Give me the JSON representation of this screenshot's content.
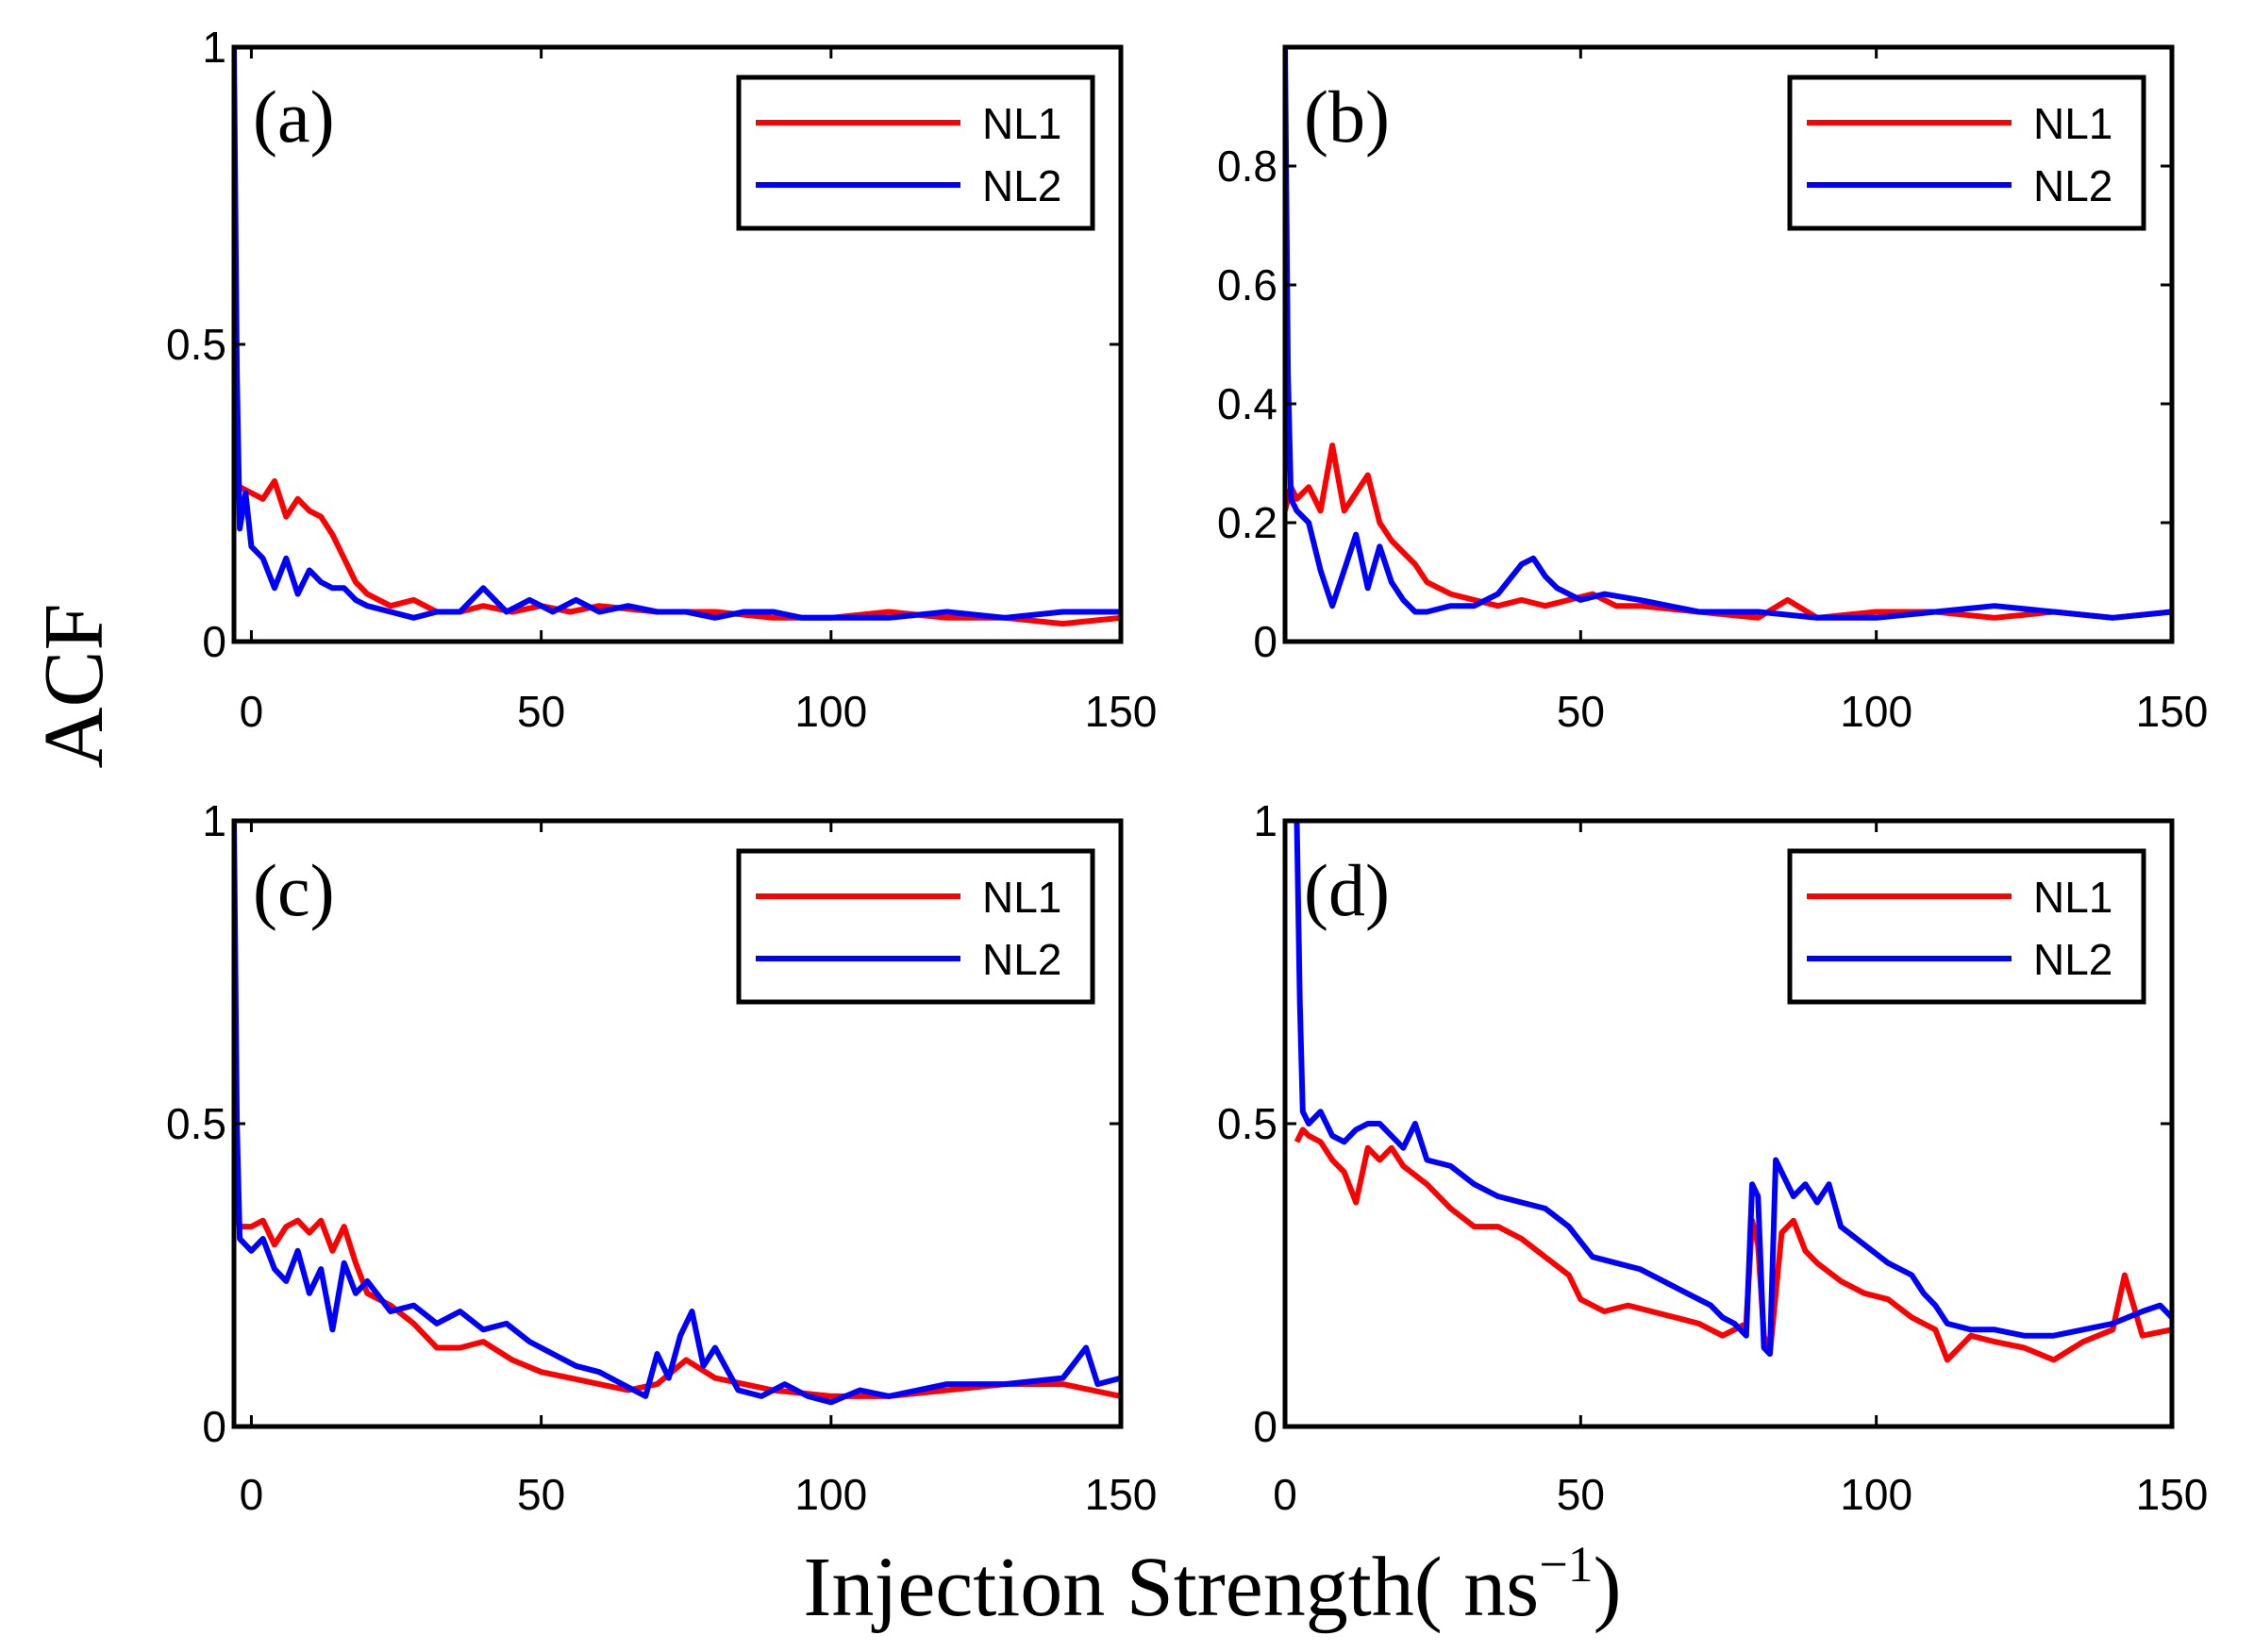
{
  "figure": {
    "ylabel": "ACF",
    "xlabel": "Injection Strength( ns",
    "xlabel_sup": "−1",
    "xlabel_close": ")"
  },
  "colors": {
    "NL1": "#ff0000",
    "NL2": "#0000ff",
    "axis": "#000000"
  },
  "chart_data": [
    {
      "type": "line",
      "panel": "(a)",
      "xlim": [
        -3,
        150
      ],
      "ylim": [
        0,
        1
      ],
      "xticks": [
        0,
        50,
        100,
        150
      ],
      "xtick_labels": [
        "0",
        "50",
        "100",
        "150"
      ],
      "yticks": [
        0,
        0.5,
        1
      ],
      "ytick_labels": [
        "0",
        "0.5",
        "1"
      ],
      "legend": "top-right",
      "series": [
        {
          "name": "NL1",
          "x": [
            -3,
            -2,
            0,
            2,
            4,
            6,
            8,
            10,
            12,
            14,
            16,
            18,
            20,
            24,
            28,
            32,
            36,
            40,
            45,
            50,
            55,
            60,
            70,
            80,
            90,
            100,
            110,
            120,
            130,
            140,
            150
          ],
          "y": [
            0.29,
            0.26,
            0.25,
            0.24,
            0.27,
            0.21,
            0.24,
            0.22,
            0.21,
            0.18,
            0.14,
            0.1,
            0.08,
            0.06,
            0.07,
            0.05,
            0.05,
            0.06,
            0.05,
            0.06,
            0.05,
            0.06,
            0.05,
            0.05,
            0.04,
            0.04,
            0.05,
            0.04,
            0.04,
            0.03,
            0.04
          ]
        },
        {
          "name": "NL2",
          "x": [
            -3,
            -2.5,
            -2,
            -1,
            0,
            2,
            4,
            6,
            8,
            10,
            12,
            14,
            16,
            18,
            20,
            24,
            28,
            32,
            36,
            40,
            44,
            48,
            52,
            56,
            60,
            65,
            70,
            75,
            80,
            85,
            90,
            95,
            100,
            110,
            120,
            130,
            140,
            150
          ],
          "y": [
            1.0,
            0.45,
            0.19,
            0.25,
            0.16,
            0.14,
            0.09,
            0.14,
            0.08,
            0.12,
            0.1,
            0.09,
            0.09,
            0.07,
            0.06,
            0.05,
            0.04,
            0.05,
            0.05,
            0.09,
            0.05,
            0.07,
            0.05,
            0.07,
            0.05,
            0.06,
            0.05,
            0.05,
            0.04,
            0.05,
            0.05,
            0.04,
            0.04,
            0.04,
            0.05,
            0.04,
            0.05,
            0.05
          ]
        }
      ]
    },
    {
      "type": "line",
      "panel": "(b)",
      "xlim": [
        0,
        150
      ],
      "ylim": [
        0,
        1
      ],
      "xticks": [
        50,
        100,
        150
      ],
      "xtick_labels": [
        "50",
        "100",
        "150"
      ],
      "yticks": [
        0,
        0.2,
        0.4,
        0.6,
        0.8
      ],
      "ytick_labels": [
        "0",
        "0.2",
        "0.4",
        "0.6",
        "0.8"
      ],
      "legend": "top-right",
      "series": [
        {
          "name": "NL1",
          "x": [
            0,
            1,
            2,
            4,
            6,
            8,
            10,
            12,
            14,
            16,
            18,
            20,
            22,
            24,
            28,
            32,
            36,
            40,
            44,
            48,
            52,
            56,
            60,
            70,
            80,
            85,
            90,
            100,
            110,
            120,
            130,
            140,
            150
          ],
          "y": [
            0.22,
            0.26,
            0.24,
            0.26,
            0.22,
            0.33,
            0.22,
            0.25,
            0.28,
            0.2,
            0.17,
            0.15,
            0.13,
            0.1,
            0.08,
            0.07,
            0.06,
            0.07,
            0.06,
            0.07,
            0.08,
            0.06,
            0.06,
            0.05,
            0.04,
            0.07,
            0.04,
            0.05,
            0.05,
            0.04,
            0.05,
            0.04,
            0.05
          ]
        },
        {
          "name": "NL2",
          "x": [
            0,
            0.5,
            1,
            2,
            4,
            6,
            8,
            10,
            12,
            14,
            16,
            18,
            20,
            22,
            24,
            28,
            32,
            36,
            40,
            42,
            44,
            46,
            50,
            54,
            60,
            70,
            80,
            90,
            100,
            110,
            120,
            130,
            140,
            150
          ],
          "y": [
            1.0,
            0.45,
            0.24,
            0.22,
            0.2,
            0.12,
            0.06,
            0.12,
            0.18,
            0.09,
            0.16,
            0.1,
            0.07,
            0.05,
            0.05,
            0.06,
            0.06,
            0.08,
            0.13,
            0.14,
            0.11,
            0.09,
            0.07,
            0.08,
            0.07,
            0.05,
            0.05,
            0.04,
            0.04,
            0.05,
            0.06,
            0.05,
            0.04,
            0.05
          ]
        }
      ]
    },
    {
      "type": "line",
      "panel": "(c)",
      "xlim": [
        -3,
        150
      ],
      "ylim": [
        0,
        1
      ],
      "xticks": [
        0,
        50,
        100,
        150
      ],
      "xtick_labels": [
        "0",
        "50",
        "100",
        "150"
      ],
      "yticks": [
        0,
        0.5,
        1
      ],
      "ytick_labels": [
        "0",
        "0.5",
        "1"
      ],
      "legend": "top-right",
      "series": [
        {
          "name": "NL1",
          "x": [
            -3,
            -2,
            0,
            2,
            4,
            6,
            8,
            10,
            12,
            14,
            16,
            18,
            20,
            24,
            28,
            32,
            36,
            40,
            45,
            50,
            55,
            60,
            65,
            70,
            75,
            80,
            85,
            90,
            100,
            110,
            120,
            130,
            140,
            145,
            150
          ],
          "y": [
            0.37,
            0.33,
            0.33,
            0.34,
            0.3,
            0.33,
            0.34,
            0.32,
            0.34,
            0.29,
            0.33,
            0.27,
            0.22,
            0.2,
            0.17,
            0.13,
            0.13,
            0.14,
            0.11,
            0.09,
            0.08,
            0.07,
            0.06,
            0.07,
            0.11,
            0.08,
            0.07,
            0.06,
            0.05,
            0.05,
            0.06,
            0.07,
            0.07,
            0.06,
            0.05
          ]
        },
        {
          "name": "NL2",
          "x": [
            -3,
            -2.5,
            -2,
            -1,
            0,
            2,
            4,
            6,
            8,
            10,
            12,
            14,
            16,
            18,
            20,
            24,
            28,
            32,
            36,
            40,
            44,
            48,
            52,
            56,
            60,
            64,
            68,
            70,
            72,
            74,
            76,
            78,
            80,
            84,
            88,
            92,
            96,
            100,
            105,
            110,
            120,
            130,
            140,
            144,
            146,
            150
          ],
          "y": [
            1.0,
            0.5,
            0.31,
            0.3,
            0.29,
            0.31,
            0.26,
            0.24,
            0.29,
            0.22,
            0.26,
            0.16,
            0.27,
            0.22,
            0.24,
            0.19,
            0.2,
            0.17,
            0.19,
            0.16,
            0.17,
            0.14,
            0.12,
            0.1,
            0.09,
            0.07,
            0.05,
            0.12,
            0.08,
            0.15,
            0.19,
            0.1,
            0.13,
            0.06,
            0.05,
            0.07,
            0.05,
            0.04,
            0.06,
            0.05,
            0.07,
            0.07,
            0.08,
            0.13,
            0.07,
            0.08
          ]
        }
      ]
    },
    {
      "type": "line",
      "panel": "(d)",
      "xlim": [
        0,
        150
      ],
      "ylim": [
        0,
        1
      ],
      "xticks": [
        0,
        50,
        100,
        150
      ],
      "xtick_labels": [
        "0",
        "50",
        "100",
        "150"
      ],
      "yticks": [
        0,
        0.5,
        1
      ],
      "ytick_labels": [
        "0",
        "0.5",
        "1"
      ],
      "legend": "top-right",
      "series": [
        {
          "name": "NL1",
          "x": [
            2,
            3,
            4,
            6,
            8,
            10,
            12,
            14,
            16,
            18,
            20,
            24,
            28,
            32,
            36,
            40,
            44,
            48,
            50,
            54,
            58,
            62,
            66,
            70,
            74,
            76,
            78,
            79,
            80,
            81,
            82,
            84,
            86,
            88,
            90,
            94,
            98,
            102,
            106,
            108,
            110,
            112,
            116,
            120,
            125,
            130,
            135,
            140,
            142,
            145,
            150
          ],
          "y": [
            0.47,
            0.49,
            0.48,
            0.47,
            0.44,
            0.42,
            0.37,
            0.46,
            0.44,
            0.46,
            0.43,
            0.4,
            0.36,
            0.33,
            0.33,
            0.31,
            0.28,
            0.25,
            0.21,
            0.19,
            0.2,
            0.19,
            0.18,
            0.17,
            0.15,
            0.16,
            0.17,
            0.34,
            0.3,
            0.15,
            0.12,
            0.32,
            0.34,
            0.29,
            0.27,
            0.24,
            0.22,
            0.21,
            0.18,
            0.17,
            0.16,
            0.11,
            0.15,
            0.14,
            0.13,
            0.11,
            0.14,
            0.16,
            0.25,
            0.15,
            0.16
          ]
        },
        {
          "name": "NL2",
          "x": [
            2,
            2.5,
            3,
            4,
            6,
            8,
            10,
            12,
            14,
            16,
            18,
            20,
            22,
            24,
            28,
            32,
            36,
            40,
            44,
            48,
            52,
            56,
            60,
            64,
            68,
            72,
            74,
            76,
            78,
            79,
            80,
            81,
            82,
            83,
            84,
            86,
            88,
            90,
            92,
            94,
            98,
            102,
            106,
            108,
            110,
            112,
            116,
            120,
            125,
            130,
            135,
            140,
            145,
            148,
            150
          ],
          "y": [
            1.0,
            0.7,
            0.52,
            0.5,
            0.52,
            0.48,
            0.47,
            0.49,
            0.5,
            0.5,
            0.48,
            0.46,
            0.5,
            0.44,
            0.43,
            0.4,
            0.38,
            0.37,
            0.36,
            0.33,
            0.28,
            0.27,
            0.26,
            0.24,
            0.22,
            0.2,
            0.18,
            0.17,
            0.15,
            0.4,
            0.38,
            0.13,
            0.12,
            0.44,
            0.42,
            0.38,
            0.4,
            0.37,
            0.4,
            0.33,
            0.3,
            0.27,
            0.25,
            0.22,
            0.2,
            0.17,
            0.16,
            0.16,
            0.15,
            0.15,
            0.16,
            0.17,
            0.19,
            0.2,
            0.18
          ]
        }
      ]
    }
  ]
}
